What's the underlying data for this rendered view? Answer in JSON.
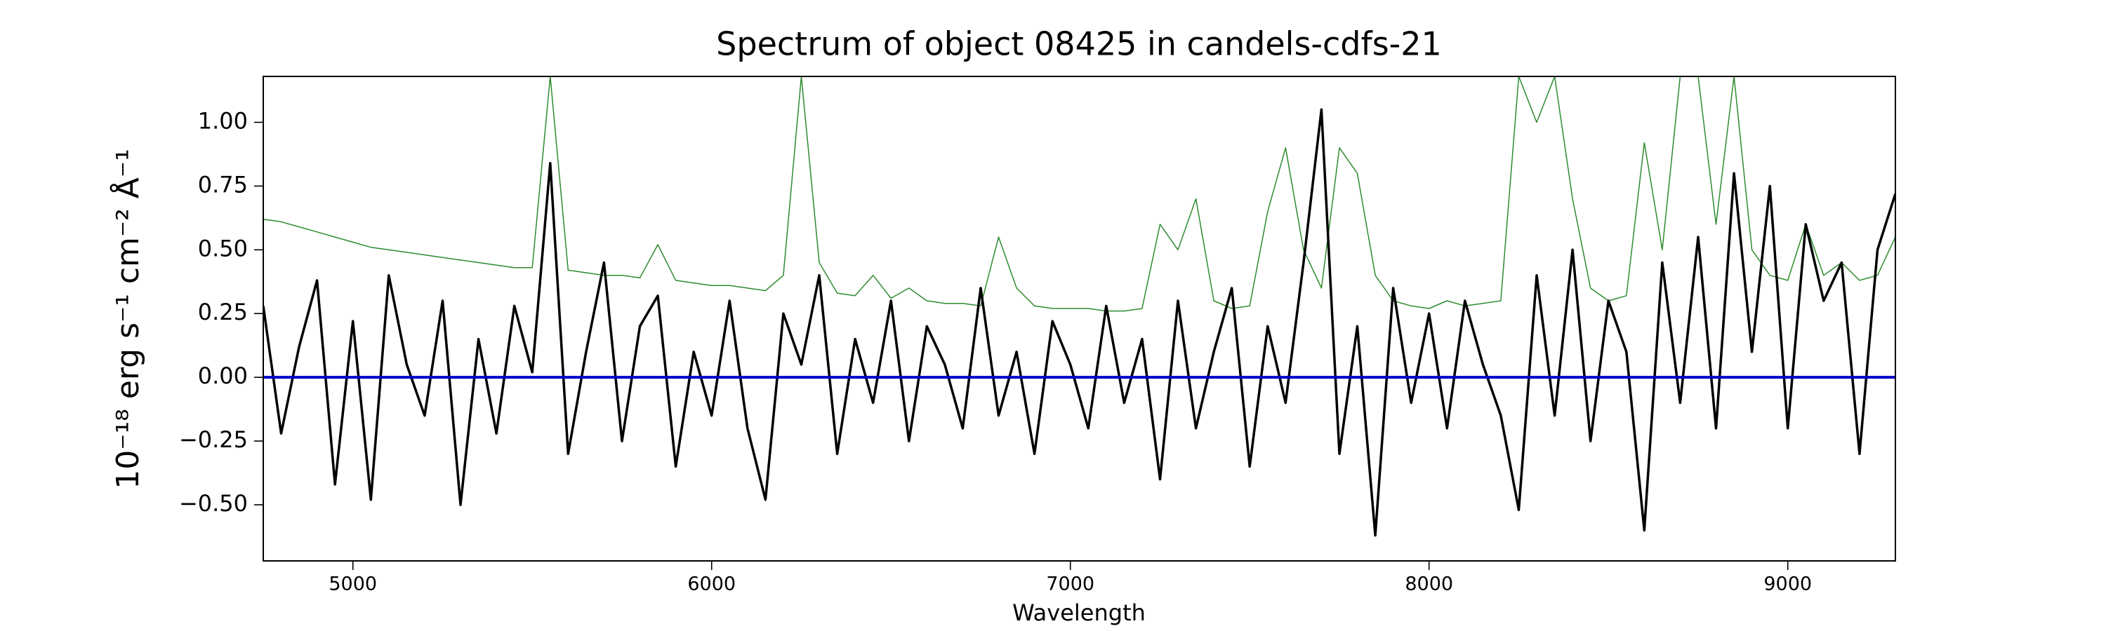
{
  "chart_data": {
    "type": "line",
    "title": "Spectrum of object 08425 in candels-cdfs-21",
    "xlabel": "Wavelength",
    "ylabel": "10⁻¹⁸ erg s⁻¹ cm⁻² Å⁻¹",
    "xlim": [
      4750,
      9300
    ],
    "ylim": [
      -0.72,
      1.18
    ],
    "xticks": [
      5000,
      6000,
      7000,
      8000,
      9000
    ],
    "yticks": [
      {
        "value": -0.5,
        "label": "−0.50"
      },
      {
        "value": -0.25,
        "label": "−0.25"
      },
      {
        "value": 0,
        "label": "0.00"
      },
      {
        "value": 0.25,
        "label": "0.25"
      },
      {
        "value": 0.5,
        "label": "0.50"
      },
      {
        "value": 0.75,
        "label": "0.75"
      },
      {
        "value": 1.0,
        "label": "1.00"
      }
    ],
    "x": [
      4750,
      4800,
      4850,
      4900,
      4950,
      5000,
      5050,
      5100,
      5150,
      5200,
      5250,
      5300,
      5350,
      5400,
      5450,
      5500,
      5550,
      5600,
      5650,
      5700,
      5750,
      5800,
      5850,
      5900,
      5950,
      6000,
      6050,
      6100,
      6150,
      6200,
      6250,
      6300,
      6350,
      6400,
      6450,
      6500,
      6550,
      6600,
      6650,
      6700,
      6750,
      6800,
      6850,
      6900,
      6950,
      7000,
      7050,
      7100,
      7150,
      7200,
      7250,
      7300,
      7350,
      7400,
      7450,
      7500,
      7550,
      7600,
      7650,
      7700,
      7750,
      7800,
      7850,
      7900,
      7950,
      8000,
      8050,
      8100,
      8150,
      8200,
      8250,
      8300,
      8350,
      8400,
      8450,
      8500,
      8550,
      8600,
      8650,
      8700,
      8750,
      8800,
      8850,
      8900,
      8950,
      9000,
      9050,
      9100,
      9150,
      9200,
      9250,
      9300
    ],
    "series": [
      {
        "color": "#2e8b2e",
        "width": 1.5,
        "values": [
          0.62,
          0.61,
          0.59,
          0.57,
          0.55,
          0.53,
          0.51,
          0.5,
          0.49,
          0.48,
          0.47,
          0.46,
          0.45,
          0.44,
          0.43,
          0.43,
          1.18,
          0.42,
          0.41,
          0.4,
          0.4,
          0.39,
          0.52,
          0.38,
          0.37,
          0.36,
          0.36,
          0.35,
          0.34,
          0.4,
          1.18,
          0.45,
          0.33,
          0.32,
          0.4,
          0.31,
          0.35,
          0.3,
          0.29,
          0.29,
          0.28,
          0.55,
          0.35,
          0.28,
          0.27,
          0.27,
          0.27,
          0.26,
          0.26,
          0.27,
          0.6,
          0.5,
          0.7,
          0.3,
          0.27,
          0.28,
          0.65,
          0.9,
          0.5,
          0.35,
          0.9,
          0.8,
          0.4,
          0.3,
          0.28,
          0.27,
          0.3,
          0.28,
          0.29,
          0.3,
          1.18,
          1.0,
          1.18,
          0.7,
          0.35,
          0.3,
          0.32,
          0.92,
          0.5,
          1.18,
          1.18,
          0.6,
          1.18,
          0.5,
          0.4,
          0.38,
          0.6,
          0.4,
          0.45,
          0.38,
          0.4,
          0.55
        ]
      },
      {
        "color": "#000000",
        "width": 3.5,
        "values": [
          0.28,
          -0.22,
          0.12,
          0.38,
          -0.42,
          0.22,
          -0.48,
          0.4,
          0.05,
          -0.15,
          0.3,
          -0.5,
          0.15,
          -0.22,
          0.28,
          0.02,
          0.84,
          -0.3,
          0.1,
          0.45,
          -0.25,
          0.2,
          0.32,
          -0.35,
          0.1,
          -0.15,
          0.3,
          -0.2,
          -0.48,
          0.25,
          0.05,
          0.4,
          -0.3,
          0.15,
          -0.1,
          0.3,
          -0.25,
          0.2,
          0.05,
          -0.2,
          0.35,
          -0.15,
          0.1,
          -0.3,
          0.22,
          0.05,
          -0.2,
          0.28,
          -0.1,
          0.15,
          -0.4,
          0.3,
          -0.2,
          0.1,
          0.35,
          -0.35,
          0.2,
          -0.1,
          0.45,
          1.05,
          -0.3,
          0.2,
          -0.62,
          0.35,
          -0.1,
          0.25,
          -0.2,
          0.3,
          0.05,
          -0.15,
          -0.52,
          0.4,
          -0.15,
          0.5,
          -0.25,
          0.3,
          0.1,
          -0.6,
          0.45,
          -0.1,
          0.55,
          -0.2,
          0.8,
          0.1,
          0.75,
          -0.2,
          0.6,
          0.3,
          0.45,
          -0.3,
          0.5,
          0.72
        ]
      },
      {
        "color": "#0000cc",
        "width": 4,
        "values": [
          0,
          0,
          0,
          0,
          0,
          0,
          0,
          0,
          0,
          0,
          0,
          0,
          0,
          0,
          0,
          0,
          0,
          0,
          0,
          0,
          0,
          0,
          0,
          0,
          0,
          0,
          0,
          0,
          0,
          0,
          0,
          0,
          0,
          0,
          0,
          0,
          0,
          0,
          0,
          0,
          0,
          0,
          0,
          0,
          0,
          0,
          0,
          0,
          0,
          0,
          0,
          0,
          0,
          0,
          0,
          0,
          0,
          0,
          0,
          0,
          0,
          0,
          0,
          0,
          0,
          0,
          0,
          0,
          0,
          0,
          0,
          0,
          0,
          0,
          0,
          0,
          0,
          0,
          0,
          0,
          0,
          0,
          0,
          0,
          0,
          0,
          0,
          0,
          0,
          0,
          0,
          0
        ]
      }
    ]
  }
}
